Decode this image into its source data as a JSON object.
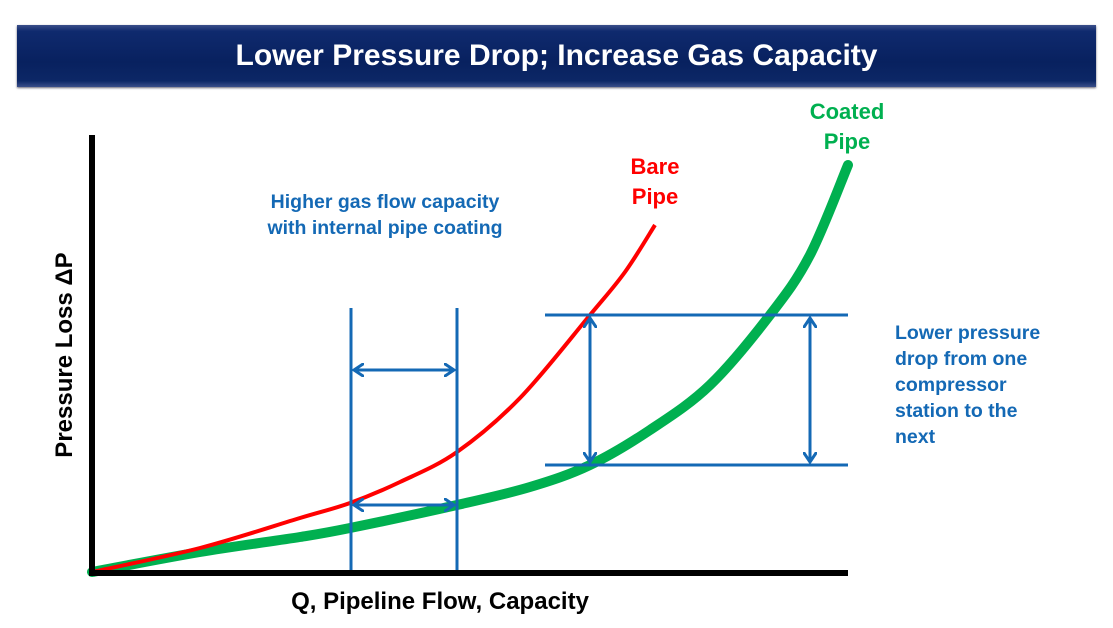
{
  "title": "Lower Pressure Drop; Increase Gas Capacity",
  "axes": {
    "x_label": "Q, Pipeline Flow, Capacity",
    "y_label": "Pressure Loss ΔP"
  },
  "series": [
    {
      "name_line1": "Bare",
      "name_line2": "Pipe",
      "color": "#ff0000"
    },
    {
      "name_line1": "Coated",
      "name_line2": "Pipe",
      "color": "#00b050"
    }
  ],
  "annotations": {
    "capacity_line1": "Higher gas flow capacity",
    "capacity_line2": "with internal pipe coating",
    "pressure_lines": [
      "Lower pressure",
      "drop from one",
      "compressor",
      "station to the",
      "next"
    ]
  },
  "annotation_color": "#1469b5"
}
